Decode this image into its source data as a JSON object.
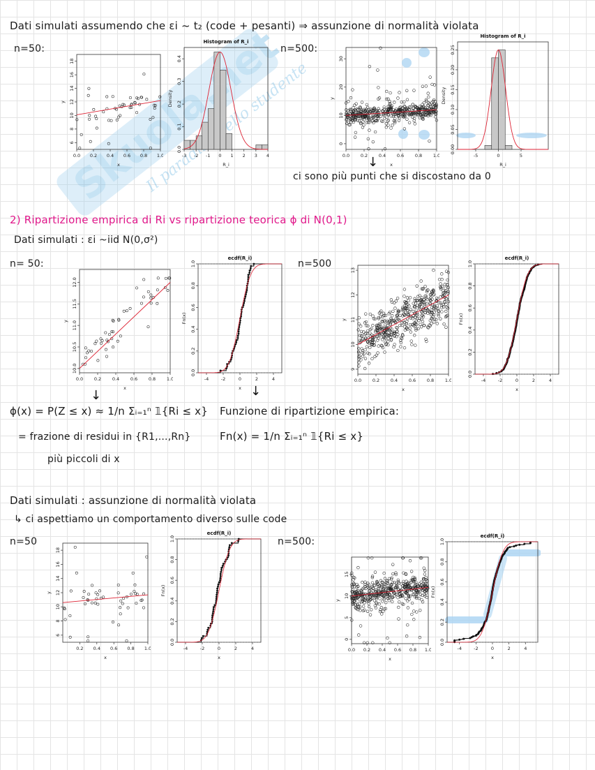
{
  "section1": {
    "heading": "Dati simulati assumendo che εi ~ t₂ (code + pesanti) ⇒ assunzione di normalità violata",
    "n50": "n=50:",
    "n500": "n=500:",
    "note": "ci sono più punti che si discostano da 0"
  },
  "section2": {
    "title": "2) Ripartizione empirica di Ri vs ripartizione teorica ɸ di N(0,1)",
    "sim": "Dati simulati : εi ~iid N(0,σ²)",
    "n50": "n= 50:",
    "n500": "n=500",
    "phi_line": "ɸ(x) = P(Z ≤ x) ≈ 1/n Σᵢ₌₁ⁿ 𝟙{Ri ≤ x}",
    "fraction_line": "= frazione di residui in {R1,...,Rn}",
    "smaller_line": "più piccoli di x",
    "ecdf_title": "Funzione di ripartizione empirica:",
    "ecdf_formula": "Fn(x) = 1/n Σᵢ₌₁ⁿ 𝟙{Ri ≤ x}"
  },
  "section3": {
    "heading": "Dati simulati : assunzione di normalità violata",
    "sub": "↳ ci aspettiamo un comportamento diverso sulle code",
    "n50": "n=50",
    "n500": "n=500:"
  },
  "watermark": "Skuola.net",
  "watermark_sub": "Il paradiso dello studente",
  "plots": {
    "hist_title": "Histogram of R_i",
    "ecdf_title": "ecdf(R_i)",
    "density": "Density",
    "fnx": "Fn(x)",
    "r_i": "R_i",
    "x": "x",
    "y": "y"
  },
  "chart_data": [
    {
      "type": "scatter",
      "id": "s1a",
      "xlim": [
        0,
        1
      ],
      "ylim": [
        5,
        19
      ],
      "xticks": [
        0.0,
        0.2,
        0.4,
        0.6,
        0.8,
        1.0
      ],
      "yticks": [
        6,
        8,
        10,
        12,
        14,
        16,
        18
      ],
      "xlabel": "x",
      "ylabel": "y",
      "line": [
        [
          0,
          10.1
        ],
        [
          1,
          12.2
        ]
      ],
      "n": 50,
      "seed": 11,
      "noise": "t2"
    },
    {
      "type": "histogram",
      "id": "h1a",
      "title": "Histogram of R_i",
      "xlabel": "R_i",
      "ylabel": "Density",
      "xlim": [
        -3,
        4
      ],
      "ylim": [
        0,
        0.45
      ],
      "xticks": [
        -3,
        -2,
        -1,
        0,
        1,
        2,
        3,
        4
      ],
      "yticks": [
        0.0,
        0.1,
        0.2,
        0.3,
        0.4
      ],
      "bins": [
        -3,
        -2.5,
        -2,
        -1.5,
        -1,
        -0.5,
        0,
        0.5,
        1,
        1.5,
        2,
        2.5,
        3,
        3.5,
        4
      ],
      "densities": [
        0.04,
        0.04,
        0.06,
        0.12,
        0.18,
        0.43,
        0.35,
        0.07,
        0.0,
        0.0,
        0.0,
        0.0,
        0.02,
        0.02
      ]
    },
    {
      "type": "scatter",
      "id": "s1b",
      "xlim": [
        0,
        1
      ],
      "ylim": [
        -2,
        34
      ],
      "xticks": [
        0.0,
        0.2,
        0.4,
        0.6,
        0.8,
        1.0
      ],
      "yticks": [
        0,
        10,
        20,
        30
      ],
      "xlabel": "x",
      "ylabel": "y",
      "line": [
        [
          0,
          10
        ],
        [
          1,
          12
        ]
      ],
      "n": 500,
      "seed": 23,
      "noise": "t2b"
    },
    {
      "type": "histogram",
      "id": "h1b",
      "title": "Histogram of R_i",
      "xlabel": "R_i",
      "ylabel": "Density",
      "xlim": [
        -9,
        11
      ],
      "ylim": [
        0,
        0.27
      ],
      "xticks": [
        -5,
        0,
        5
      ],
      "yticks": [
        0.0,
        0.05,
        0.1,
        0.15,
        0.2,
        0.25
      ],
      "bins": [
        -3,
        -1.5,
        0,
        1.5,
        3
      ],
      "densities": [
        0.01,
        0.23,
        0.25,
        0.01
      ]
    },
    {
      "type": "scatter",
      "id": "s2a",
      "xlim": [
        0,
        1
      ],
      "ylim": [
        9.9,
        12.3
      ],
      "xticks": [
        0.0,
        0.2,
        0.4,
        0.6,
        0.8,
        1.0
      ],
      "yticks": [
        10.0,
        10.5,
        11.0,
        11.5,
        12.0
      ],
      "xlabel": "x",
      "ylabel": "y",
      "line": [
        [
          0,
          10.0
        ],
        [
          1,
          12.0
        ]
      ],
      "n": 50,
      "seed": 37,
      "noise": "normal"
    },
    {
      "type": "ecdf",
      "id": "e2a",
      "title": "ecdf(R_i)",
      "xlabel": "x",
      "ylabel": "Fn(x)",
      "xlim": [
        -5,
        5
      ],
      "ylim": [
        0,
        1
      ],
      "xticks": [
        -4,
        -2,
        0,
        2,
        4
      ],
      "yticks": [
        0.0,
        0.2,
        0.4,
        0.6,
        0.8,
        1.0
      ],
      "n": 50,
      "seed": 41
    },
    {
      "type": "scatter",
      "id": "s2b",
      "xlim": [
        0,
        1
      ],
      "ylim": [
        8.8,
        13.2
      ],
      "xticks": [
        0.0,
        0.2,
        0.4,
        0.6,
        0.8,
        1.0
      ],
      "yticks": [
        9,
        10,
        11,
        12,
        13
      ],
      "xlabel": "x",
      "ylabel": "y",
      "line": [
        [
          0,
          10
        ],
        [
          1,
          12
        ]
      ],
      "n": 500,
      "seed": 53,
      "noise": "normal"
    },
    {
      "type": "ecdf",
      "id": "e2b",
      "title": "ecdf(R_i)",
      "xlabel": "x",
      "ylabel": "Fn(x)",
      "xlim": [
        -5,
        5
      ],
      "ylim": [
        0,
        1
      ],
      "xticks": [
        -4,
        -2,
        0,
        2,
        4
      ],
      "yticks": [
        0.0,
        0.2,
        0.4,
        0.6,
        0.8,
        1.0
      ],
      "n": 500,
      "seed": 59
    },
    {
      "type": "scatter",
      "id": "s3a",
      "xlim": [
        0,
        1
      ],
      "ylim": [
        5,
        19
      ],
      "xticks": [
        0.2,
        0.4,
        0.6,
        0.8,
        1.0
      ],
      "yticks": [
        6,
        8,
        10,
        12,
        14,
        16,
        18
      ],
      "xlabel": "x",
      "ylabel": "y",
      "line": [
        [
          0,
          10.6
        ],
        [
          1,
          11.7
        ]
      ],
      "n": 50,
      "seed": 67,
      "noise": "t2"
    },
    {
      "type": "ecdf",
      "id": "e3a",
      "title": "ecdf(R_i)",
      "xlabel": "x",
      "ylabel": "Fn(x)",
      "xlim": [
        -5,
        5
      ],
      "ylim": [
        0,
        1
      ],
      "xticks": [
        -4,
        -2,
        0,
        2,
        4
      ],
      "yticks": [
        0.0,
        0.2,
        0.4,
        0.6,
        0.8,
        1.0
      ],
      "n": 50,
      "seed": 71
    },
    {
      "type": "scatter",
      "id": "s3b",
      "xlim": [
        0,
        1
      ],
      "ylim": [
        -1,
        19
      ],
      "xticks": [
        0.0,
        0.2,
        0.4,
        0.6,
        0.8,
        1.0
      ],
      "yticks": [
        0,
        5,
        10,
        15
      ],
      "xlabel": "x",
      "ylabel": "y",
      "line": [
        [
          0,
          10
        ],
        [
          1,
          12
        ]
      ],
      "n": 500,
      "seed": 79,
      "noise": "t2"
    },
    {
      "type": "ecdf",
      "id": "e3b",
      "title": "ecdf(R_i)",
      "xlabel": "x",
      "ylabel": "Fn(x)",
      "xlim": [
        -5.5,
        5.5
      ],
      "ylim": [
        0,
        1
      ],
      "xticks": [
        -4,
        -2,
        0,
        2,
        4
      ],
      "yticks": [
        0.0,
        0.2,
        0.4,
        0.6,
        0.8,
        1.0
      ],
      "n": 500,
      "seed": 83,
      "heavy": true
    }
  ]
}
